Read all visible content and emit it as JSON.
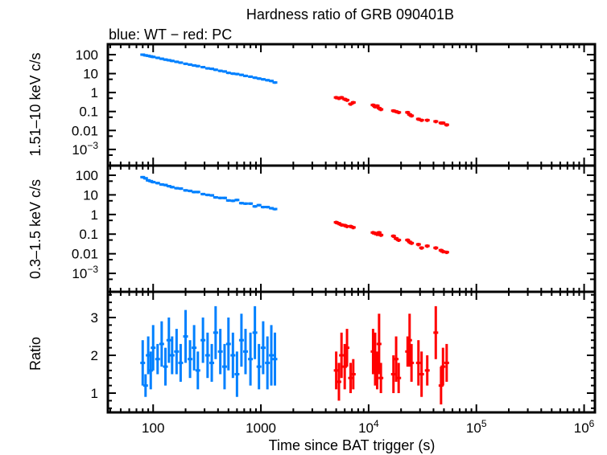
{
  "chart_data": {
    "type": "scatter",
    "title": "Hardness ratio of GRB 090401B",
    "subtitle": "blue: WT − red: PC",
    "xlabel": "Time since BAT trigger (s)",
    "x_scale": "log",
    "xlim": [
      38,
      1260000
    ],
    "x_ticks": [
      {
        "v": 100,
        "label": "100"
      },
      {
        "v": 1000,
        "label": "1000"
      },
      {
        "v": 10000,
        "label": "10",
        "sup": "4"
      },
      {
        "v": 100000,
        "label": "10",
        "sup": "5"
      },
      {
        "v": 1000000,
        "label": "10",
        "sup": "6"
      }
    ],
    "colors": {
      "WT": "#0080ff",
      "PC": "#ff0000",
      "axes": "#000000"
    },
    "panels": [
      {
        "key": "hard",
        "ylabel": "1.51–10 keV c/s",
        "y_scale": "log",
        "ylim": [
          0.00014,
          355
        ],
        "y_ticks": [
          {
            "v": 100,
            "label": "100"
          },
          {
            "v": 10,
            "label": "10"
          },
          {
            "v": 1,
            "label": "1"
          },
          {
            "v": 0.1,
            "label": "0.1"
          },
          {
            "v": 0.01,
            "label": "0.01"
          },
          {
            "v": 0.001,
            "label": "10",
            "sup": "−3"
          }
        ]
      },
      {
        "key": "soft",
        "ylabel": "0.3–1.5 keV c/s",
        "y_scale": "log",
        "ylim": [
          0.000115,
          310
        ],
        "y_ticks": [
          {
            "v": 100,
            "label": "100"
          },
          {
            "v": 10,
            "label": "10"
          },
          {
            "v": 1,
            "label": "1"
          },
          {
            "v": 0.1,
            "label": "0.1"
          },
          {
            "v": 0.01,
            "label": "0.01"
          },
          {
            "v": 0.001,
            "label": "10",
            "sup": "−3"
          }
        ]
      },
      {
        "key": "ratio",
        "ylabel": "Ratio",
        "y_scale": "linear",
        "ylim": [
          0.49,
          3.68
        ],
        "y_ticks": [
          {
            "v": 1,
            "label": "1"
          },
          {
            "v": 2,
            "label": "2"
          },
          {
            "v": 3,
            "label": "3"
          }
        ]
      }
    ],
    "series": [
      {
        "mode": "WT",
        "rel_err": 0.15,
        "t": [
          80,
          85,
          90,
          95,
          100,
          110,
          120,
          130,
          140,
          150,
          165,
          180,
          200,
          220,
          240,
          260,
          290,
          320,
          350,
          380,
          420,
          460,
          500,
          550,
          600,
          660,
          720,
          800,
          880,
          960,
          1050,
          1150,
          1250,
          1350
        ],
        "hard": [
          100,
          92,
          87,
          81,
          76,
          68,
          61,
          55,
          51,
          47,
          42,
          38,
          33,
          30,
          27,
          25,
          22,
          19,
          18,
          16,
          14,
          13,
          11,
          10,
          9.5,
          8.6,
          7.6,
          6.9,
          6.1,
          5.5,
          5.0,
          4.5,
          4.1,
          3.4
        ],
        "soft": [
          80,
          70,
          55,
          50,
          45,
          40,
          34,
          32,
          28,
          25,
          22,
          21,
          17,
          16,
          14,
          14,
          11,
          10,
          9.5,
          7.5,
          7.0,
          7.0,
          5.2,
          5.0,
          5.5,
          3.8,
          3.6,
          3.6,
          2.6,
          3.0,
          2.4,
          2.4,
          2.1,
          1.9
        ],
        "ratio": [
          1.8,
          1.2,
          2.0,
          1.6,
          2.2,
          1.9,
          2.3,
          1.7,
          2.4,
          2.0,
          2.1,
          1.8,
          2.5,
          1.9,
          2.2,
          1.6,
          2.4,
          2.0,
          1.8,
          2.6,
          2.1,
          1.7,
          2.3,
          2.0,
          1.5,
          2.4,
          2.1,
          1.9,
          2.6,
          1.7,
          2.2,
          1.8,
          2.0,
          1.9
        ],
        "ratio_err": [
          0.6,
          0.3,
          0.5,
          0.5,
          0.6,
          0.4,
          0.6,
          0.5,
          0.6,
          0.5,
          0.6,
          0.5,
          0.7,
          0.5,
          0.6,
          0.5,
          0.6,
          0.6,
          0.5,
          0.7,
          0.6,
          0.6,
          0.7,
          0.6,
          0.6,
          0.7,
          0.6,
          0.7,
          0.7,
          0.6,
          0.7,
          0.7,
          0.8,
          0.7
        ]
      },
      {
        "mode": "PC",
        "rel_err": 0.2,
        "t": [
          5000,
          5300,
          5600,
          6000,
          6300,
          6800,
          7200,
          11000,
          11500,
          12000,
          12500,
          13000,
          17000,
          18000,
          19000,
          23000,
          24000,
          25000,
          29000,
          31000,
          35000,
          42000,
          47000,
          49000,
          53000
        ],
        "hard": [
          0.55,
          0.5,
          0.55,
          0.45,
          0.4,
          0.25,
          0.3,
          0.22,
          0.18,
          0.2,
          0.15,
          0.13,
          0.11,
          0.1,
          0.09,
          0.09,
          0.07,
          0.06,
          0.04,
          0.035,
          0.035,
          0.03,
          0.025,
          0.025,
          0.02
        ],
        "soft": [
          0.4,
          0.35,
          0.3,
          0.28,
          0.25,
          0.25,
          0.22,
          0.12,
          0.11,
          0.1,
          0.12,
          0.09,
          0.08,
          0.06,
          0.05,
          0.05,
          0.04,
          0.035,
          0.03,
          0.02,
          0.025,
          0.02,
          0.015,
          0.013,
          0.012
        ],
        "ratio": [
          1.6,
          1.3,
          2.0,
          1.7,
          2.2,
          1.4,
          1.5,
          2.1,
          1.9,
          1.6,
          2.3,
          1.4,
          1.5,
          1.9,
          1.4,
          2.1,
          2.4,
          1.8,
          1.8,
          1.5,
          1.6,
          2.6,
          1.2,
          1.7,
          1.8
        ],
        "ratio_err": [
          0.5,
          0.5,
          0.6,
          0.6,
          0.5,
          0.4,
          0.4,
          0.6,
          0.7,
          0.5,
          0.8,
          0.4,
          0.5,
          0.6,
          0.4,
          0.4,
          0.7,
          0.5,
          0.6,
          0.6,
          0.4,
          0.7,
          0.5,
          0.5,
          0.5
        ]
      }
    ]
  }
}
